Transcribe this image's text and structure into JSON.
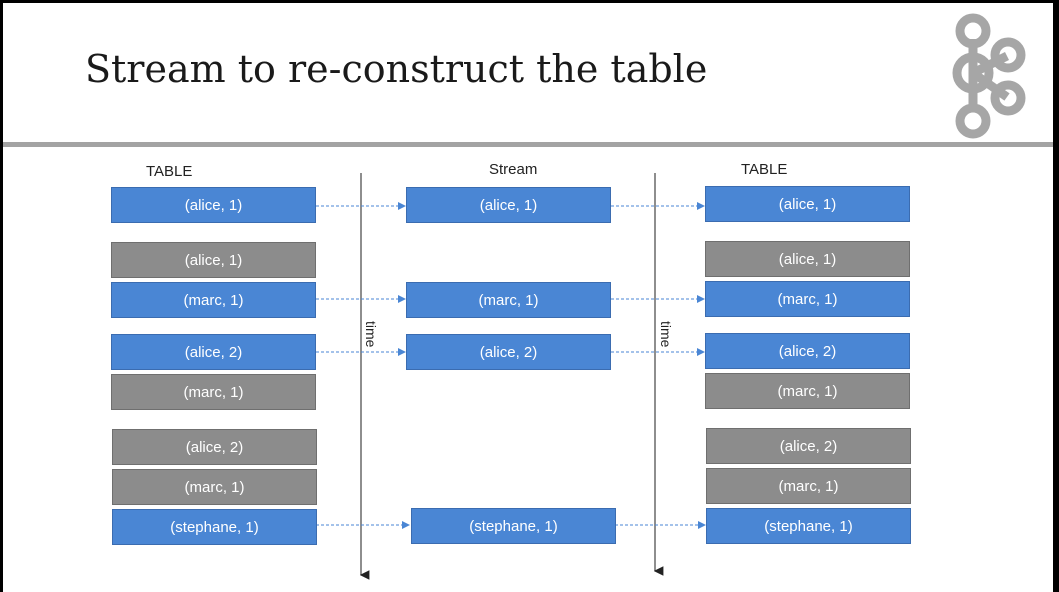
{
  "slide": {
    "title": "Stream to re-construct the table"
  },
  "columns": {
    "left_header": "TABLE",
    "middle_header": "Stream",
    "right_header": "TABLE"
  },
  "timelines": {
    "left_label": "time",
    "right_label": "time"
  },
  "left_table": [
    {
      "text": "(alice, 1)",
      "state": "current"
    },
    {
      "text": "(alice, 1)",
      "state": "previous"
    },
    {
      "text": "(marc, 1)",
      "state": "current"
    },
    {
      "text": "(alice, 2)",
      "state": "current"
    },
    {
      "text": "(marc, 1)",
      "state": "previous"
    },
    {
      "text": "(alice, 2)",
      "state": "previous"
    },
    {
      "text": "(marc, 1)",
      "state": "previous"
    },
    {
      "text": "(stephane, 1)",
      "state": "current"
    }
  ],
  "stream": [
    {
      "text": "(alice, 1)"
    },
    {
      "text": "(marc, 1)"
    },
    {
      "text": "(alice, 2)"
    },
    {
      "text": "(stephane, 1)"
    }
  ],
  "right_table": [
    {
      "text": "(alice, 1)",
      "state": "current"
    },
    {
      "text": "(alice, 1)",
      "state": "previous"
    },
    {
      "text": "(marc, 1)",
      "state": "current"
    },
    {
      "text": "(alice, 2)",
      "state": "current"
    },
    {
      "text": "(marc, 1)",
      "state": "previous"
    },
    {
      "text": "(alice, 2)",
      "state": "previous"
    },
    {
      "text": "(marc, 1)",
      "state": "previous"
    },
    {
      "text": "(stephane, 1)",
      "state": "current"
    }
  ],
  "colors": {
    "current": "#4a86d4",
    "previous": "#8c8c8c",
    "arrow": "#4a86d4",
    "logo": "#a6a6a6"
  },
  "icons": {
    "logo": "kafka-logo"
  }
}
